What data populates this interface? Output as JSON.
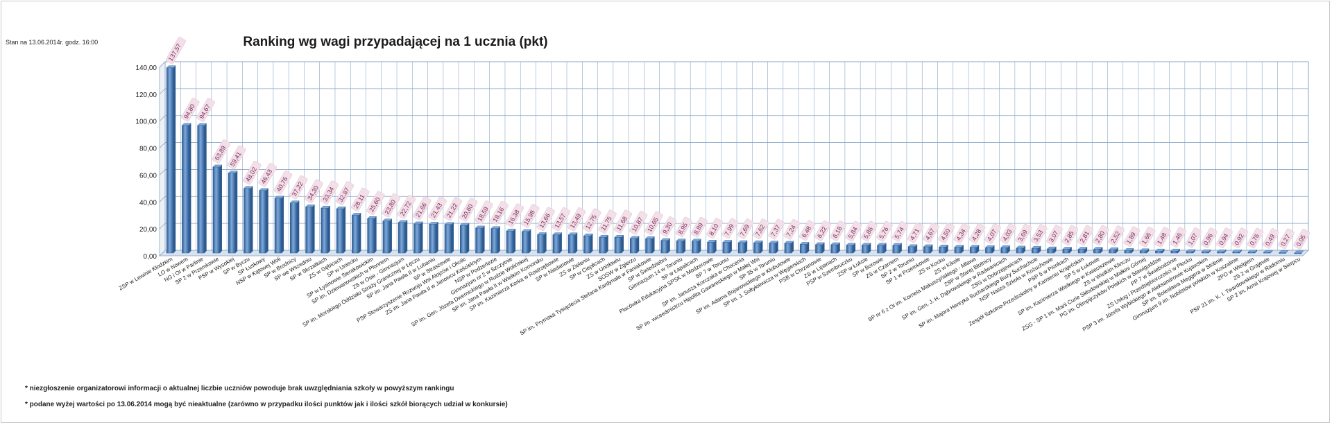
{
  "header": {
    "stamp": "Stan na 13.06.2014r.  godz. 16:00",
    "title": "Ranking wg wagi przypadającej na 1 ucznia (pkt)"
  },
  "footnotes": [
    "* niezgłoszenie organizatorowi informacji o aktualnej liczbie uczniów powoduje brak uwzględniania szkoły w powyższym rankingu",
    "* podane wyżej wartości po 13.06.2014  mogą być nieaktualne (zarówno w przypadku ilości punktów jak i ilości szkół biorących udział w konkursie)"
  ],
  "colors": {
    "bar": "#4a7ebb",
    "bar_dark": "#2c5a8f",
    "bar_light": "#7ea9dd",
    "grid": "#8aa6c8",
    "label": "#7b2d5c",
    "label_bg": "#f2dfe8"
  },
  "chart_data": {
    "type": "bar",
    "title": "Ranking wg wagi przypadającej na 1 ucznia (pkt)",
    "xlabel": "",
    "ylabel": "",
    "ylim": [
      0,
      140
    ],
    "ytick_labels": [
      "0,00",
      "20,00",
      "40,00",
      "60,00",
      "80,00",
      "100,00",
      "120,00",
      "140,00"
    ],
    "grid": true,
    "legend": "none",
    "categories": [
      "ZSP w Lewinie Kłodzkim",
      "LO w Nowem",
      "NG i OI w Parlinie",
      "SP 2 w Przemkowie",
      "PSP w Wysokiej",
      "SP w Byczu",
      "SP Łuskowy",
      "NSP w Kątowej Woli",
      "SP w Brodnicy",
      "SP we Wszedniu",
      "SP w Skrzatkach",
      "ZS w Gębicach",
      "SP w Uniecku",
      "SP w Łysinowie Sierakowickim",
      "SP im. Dziewanowskich w Płonnem",
      "ZS w Osie - Gimnazjum",
      "SP im. Morskiego Oddziału Straży Granicznej w Łęczu",
      "SP im. Jana Pawła II w Lubaniu",
      "SP w Straszewie",
      "PSP Stowarzyszenie Rozwoju Wsi Alojzów i Okolic",
      "ZS im. Jana Pawła II w Janowcu Kościelnym",
      "NSP w Podzerlezie",
      "Gimnazjum nr 2 w Szczytnie",
      "SP im. Gen. Józefa Dwernickiego w Rudzie Wolińskiej",
      "SP im. Jana Pawła II w Wielkim Komorsku",
      "SP im. Kazimierza Korka w Rostrzębowie",
      "SP w Niedanowie",
      "ZS w Zieleniu",
      "SP w Ciepłicach",
      "ZS w Unisławiu",
      "SOSW w Zgierzu",
      "SP im. Prymasa Tysiąclecia Stefana Kardynała w Faniakowie",
      "SP w Świedziebni",
      "Gimnazjum 14 w Toruniu",
      "SP w Łapalicach",
      "Placówka Edukacyjna SPSK w Modzerowie",
      "SP 7 w Toruniu",
      "SP im. Janusza Korczaka w Chocenia",
      "SP im. wiceedmistrzu Hipolita Gawareckiego w Małej Wsi",
      "SP 35 w Toruniu",
      "SP im. Adama Bojanowskiego w Kłobutowie",
      "SP im. J. Sołtykiewicza w Węgierskich",
      "PSB w Chrzanowie",
      "ZS w Lipanach",
      "PSP w Szembruczku",
      "ZSP w Łukcie",
      "SP w Borowie",
      "ZS w Czarnem",
      "SP 2 w Toruniu",
      "SP 1 w Przemkowie",
      "ZS w Kocku",
      "ZS w Kikole",
      "SP nr 6 z OI im. Kornela Makuszyńskiego - Mława",
      "ZSP w Starej Błotnicy",
      "SP im. Gen. J. H. Dąbrowskiego w Radwanicach",
      "ZSG w Dobrzejewicach",
      "SP im. Majora Henryka Sucharskiego Buży Suchachcie",
      "NSP Nasza Szkoła w Kożuchowie",
      "PSP 5 w Pionkach",
      "Zespół Szkolno-Przedszkolny w Kamieniu Krajeńskim",
      "SP 5 w Łukowie",
      "SP im. Kazimierza Wielkiego w Kwieciszewie",
      "ZS w Wielkim Klinczu",
      "ZSG - SP 1 im. Marii Curie Skłodowskiej w Małkini Górnej",
      "PG im. Olimpijczyków Polskich w Stawiguddzie",
      "PP 7 w Świebodzinie",
      "ZS Usług i Przedsiębiorczości w Płocku",
      "PSP 3 im. Józefa Wybickiego w Aleksandrowie Kujawskim",
      "SP im. Bolesława Meggera w Stobnie",
      "Gimnazjum 9 im. Noblistów polskich w Koszalinie",
      "ZPO w Wielgiem",
      "ZS 2 w Grajewie",
      "PSP 21 im. K. I. Twardowskiego w Radomiu",
      "SP 2 im. Armii Krajowej w Sierpcu"
    ],
    "values": [
      137.57,
      94.8,
      94.67,
      63.89,
      59.41,
      48.02,
      46.43,
      40.76,
      37.22,
      34.3,
      33.34,
      32.87,
      28.11,
      25.6,
      23.8,
      22.72,
      21.66,
      21.43,
      21.22,
      20.6,
      18.59,
      18.16,
      16.38,
      15.98,
      13.66,
      13.57,
      13.49,
      12.75,
      11.75,
      11.68,
      10.87,
      10.65,
      9.3,
      8.95,
      8.89,
      8.1,
      7.99,
      7.69,
      7.62,
      7.37,
      7.24,
      6.48,
      6.22,
      6.18,
      5.84,
      5.86,
      5.76,
      5.74,
      4.71,
      4.67,
      4.5,
      4.34,
      4.28,
      4.07,
      4.03,
      3.69,
      3.53,
      3.07,
      2.85,
      2.81,
      2.8,
      2.52,
      1.89,
      1.66,
      1.48,
      1.46,
      1.07,
      0.96,
      0.94,
      0.92,
      0.76,
      0.49,
      0.27,
      0.05
    ],
    "value_labels": [
      "137,57",
      "94,80",
      "94,67",
      "63,89",
      "59,41",
      "48,02",
      "46,43",
      "40,76",
      "37,22",
      "34,30",
      "33,34",
      "32,87",
      "28,11",
      "25,60",
      "23,80",
      "22,72",
      "21,66",
      "21,43",
      "21,22",
      "20,60",
      "18,59",
      "18,16",
      "16,38",
      "15,98",
      "13,66",
      "13,57",
      "13,49",
      "12,75",
      "11,75",
      "11,68",
      "10,87",
      "10,65",
      "9,30",
      "8,95",
      "8,89",
      "8,10",
      "7,99",
      "7,69",
      "7,62",
      "7,37",
      "7,24",
      "6,48",
      "6,22",
      "6,18",
      "5,84",
      "5,86",
      "5,76",
      "5,74",
      "4,71",
      "4,67",
      "4,50",
      "4,34",
      "4,28",
      "4,07",
      "4,03",
      "3,69",
      "3,53",
      "3,07",
      "2,85",
      "2,81",
      "2,80",
      "2,52",
      "1,89",
      "1,66",
      "1,48",
      "1,46",
      "1,07",
      "0,96",
      "0,94",
      "0,92",
      "0,76",
      "0,49",
      "0,27",
      "0,05"
    ]
  }
}
